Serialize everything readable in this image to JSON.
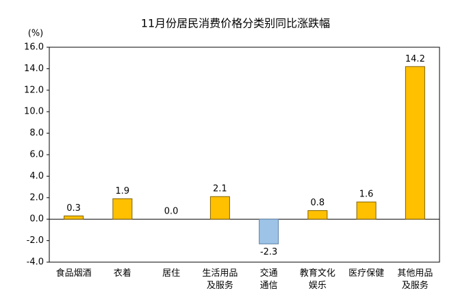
{
  "chart_data": {
    "type": "bar",
    "title": "11月份居民消费价格分类别同比涨跌幅",
    "y_unit": "(%)",
    "categories": [
      "食品烟酒",
      "衣着",
      "居住",
      "生活用品\n及服务",
      "交通\n通信",
      "教育文化\n娱乐",
      "医疗保健",
      "其他用品\n及服务"
    ],
    "values": [
      0.3,
      1.9,
      0.0,
      2.1,
      -2.3,
      0.8,
      1.6,
      14.2
    ],
    "value_labels": [
      "0.3",
      "1.9",
      "0.0",
      "2.1",
      "-2.3",
      "0.8",
      "1.6",
      "14.2"
    ],
    "color": "#ffc000",
    "negative_color": "#9dc3e6",
    "ylim": [
      -4,
      16
    ],
    "yticks": [
      {
        "value": -4,
        "label": "-4.0"
      },
      {
        "value": -2,
        "label": "-2.0"
      },
      {
        "value": 0,
        "label": "0.0"
      },
      {
        "value": 2,
        "label": "2.0"
      },
      {
        "value": 4,
        "label": "4.0"
      },
      {
        "value": 6,
        "label": "6.0"
      },
      {
        "value": 8,
        "label": "8.0"
      },
      {
        "value": 10,
        "label": "10.0"
      },
      {
        "value": 12,
        "label": "12.0"
      },
      {
        "value": 14,
        "label": "14.0"
      },
      {
        "value": 16,
        "label": "16.0"
      }
    ],
    "grid": false
  }
}
